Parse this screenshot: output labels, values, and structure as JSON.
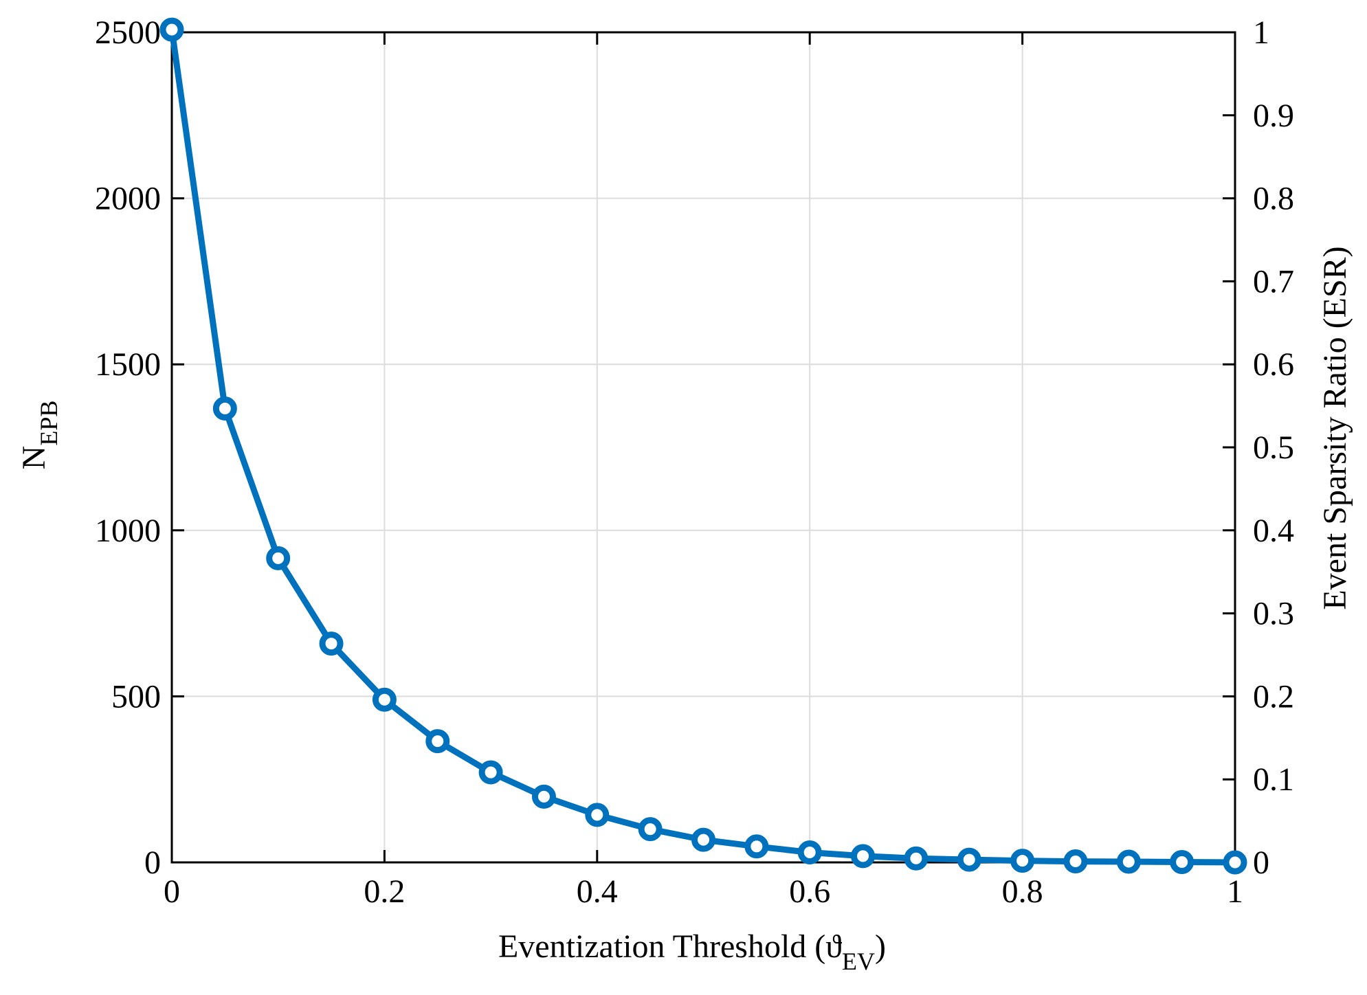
{
  "chart_data": {
    "type": "line",
    "title": "",
    "xlabel": "Eventization Threshold (ϑ",
    "xlabel_sub": "EV",
    "xlabel_suffix": ")",
    "ylabel_left": "N",
    "ylabel_left_sub": "EPB",
    "ylabel_right": "Event Sparsity Ratio (ESR)",
    "xlim": [
      0,
      1
    ],
    "ylim_left": [
      0,
      2500
    ],
    "ylim_right": [
      0,
      1
    ],
    "grid": true,
    "x_ticks": [
      "0",
      "0.2",
      "0.4",
      "0.6",
      "0.8",
      "1"
    ],
    "y_left_ticks": [
      "0",
      "500",
      "1000",
      "1500",
      "2000",
      "2500"
    ],
    "y_right_ticks": [
      "0",
      "0.1",
      "0.2",
      "0.3",
      "0.4",
      "0.5",
      "0.6",
      "0.7",
      "0.8",
      "0.9",
      "1"
    ],
    "series": [
      {
        "name": "N_EPB",
        "color": "#0072bd",
        "marker": "circle",
        "x": [
          0,
          0.05,
          0.1,
          0.15,
          0.2,
          0.25,
          0.3,
          0.35,
          0.4,
          0.45,
          0.5,
          0.55,
          0.6,
          0.65,
          0.7,
          0.75,
          0.8,
          0.85,
          0.9,
          0.95,
          1.0
        ],
        "values": [
          2508,
          1367,
          916,
          659,
          490,
          365,
          271,
          198,
          143,
          100,
          68,
          48,
          30,
          19,
          12,
          8,
          5,
          3,
          2,
          1,
          0
        ]
      }
    ]
  }
}
